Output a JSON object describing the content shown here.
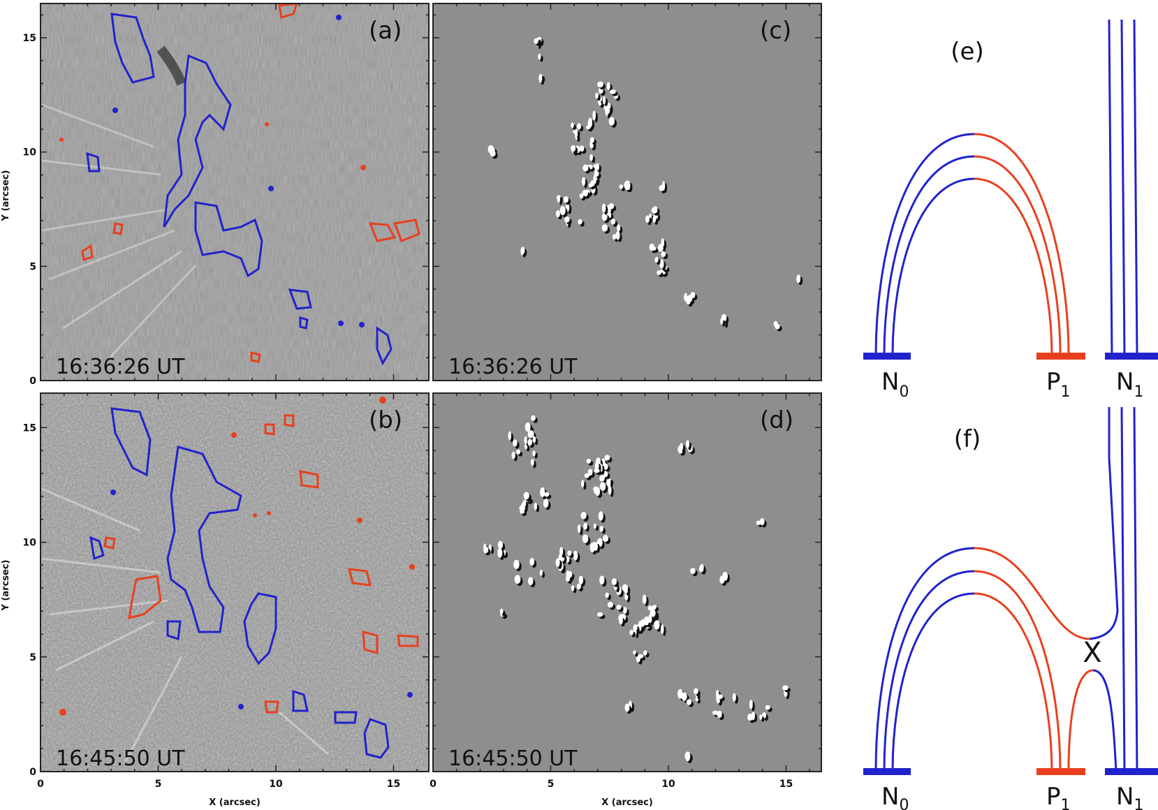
{
  "colors": {
    "negative": "#2222cc",
    "positive": "#e8401e",
    "panel_gray": "#8e8e8e",
    "axis": "#222222"
  },
  "panels": {
    "a": {
      "label": "(a)",
      "time": "16:36:26  UT"
    },
    "b": {
      "label": "(b)",
      "time": "16:45:50  UT"
    },
    "c": {
      "label": "(c)",
      "time": "16:36:26  UT"
    },
    "d": {
      "label": "(d)",
      "time": "16:45:50  UT"
    },
    "e": {
      "label": "(e)"
    },
    "f": {
      "label": "(f)"
    }
  },
  "axes": {
    "xlabel": "X (arcsec)",
    "ylabel": "Y (arcsec)",
    "x_ticks": [
      "0",
      "5",
      "10",
      "15"
    ],
    "y_ticks": [
      "0",
      "5",
      "10",
      "15"
    ],
    "range": [
      0,
      16.5
    ]
  },
  "footpoints": {
    "N0": {
      "main": "N",
      "sub": "0"
    },
    "P1": {
      "main": "P",
      "sub": "1"
    },
    "N1": {
      "main": "N",
      "sub": "1"
    }
  },
  "reconnection_marker": "X"
}
